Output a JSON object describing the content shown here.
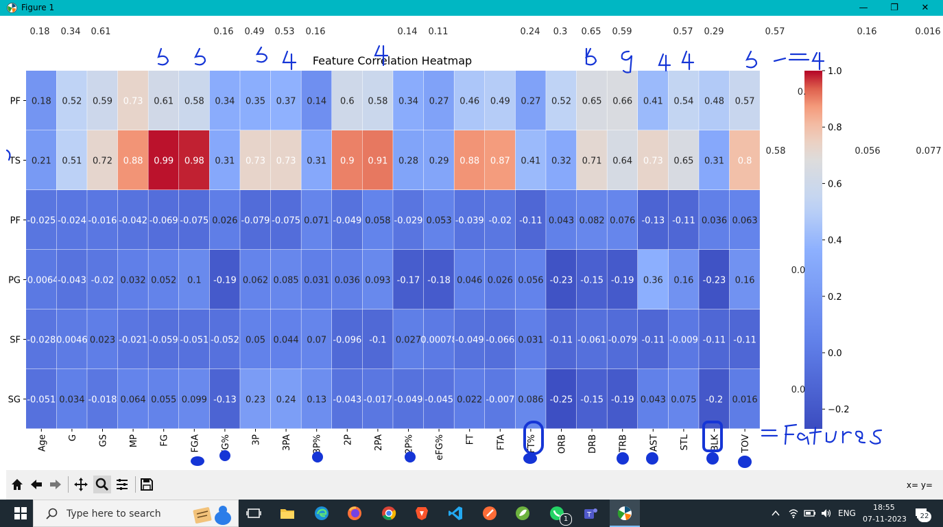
{
  "window": {
    "title": "Figure 1",
    "minimize": "—",
    "maximize": "❐",
    "close": "✕"
  },
  "figure": {
    "title": "Feature Correlation Heatmap",
    "top_values": [
      "0.18",
      "0.34",
      "0.61",
      "0.16",
      "0.49",
      "0.53",
      "0.16",
      "0.14",
      "0.11",
      "0.24",
      "0.3",
      "0.65",
      "0.59",
      "0.57",
      "0.29",
      "0.57",
      "0.16",
      "0.016"
    ],
    "right_values": [
      "0.58",
      "0.056",
      "0.077",
      "0.0",
      "0.0"
    ],
    "partial_right": [
      "0."
    ],
    "annotation": {
      "features_label": "=Features",
      "arrow": "=4"
    }
  },
  "chart_data": {
    "type": "heatmap",
    "title": "Feature Correlation Heatmap",
    "x_labels": [
      "Age",
      "G",
      "GS",
      "MP",
      "FG",
      "FGA",
      "FG%",
      "3P",
      "3PA",
      "3P%",
      "2P",
      "2PA",
      "2P%",
      "eFG%",
      "FT",
      "FTA",
      "FT%",
      "ORB",
      "DRB",
      "TRB",
      "AST",
      "STL",
      "BLK",
      "TOV"
    ],
    "y_labels": [
      "PF",
      "TS",
      "PF",
      "PG",
      "SF",
      "SG"
    ],
    "y_labels_shown": [
      "PF",
      "TS",
      "PF",
      "PG",
      "SF",
      "SG"
    ],
    "values": [
      [
        0.18,
        0.52,
        0.59,
        0.73,
        0.61,
        0.58,
        0.34,
        0.35,
        0.37,
        0.14,
        0.6,
        0.58,
        0.34,
        0.27,
        0.46,
        0.49,
        0.27,
        0.52,
        0.65,
        0.66,
        0.41,
        0.54,
        0.48,
        0.57
      ],
      [
        0.21,
        0.51,
        0.72,
        0.88,
        0.99,
        0.98,
        0.31,
        0.73,
        0.73,
        0.31,
        0.9,
        0.91,
        0.28,
        0.29,
        0.88,
        0.87,
        0.41,
        0.32,
        0.71,
        0.64,
        0.73,
        0.65,
        0.31,
        0.8
      ],
      [
        -0.025,
        -0.024,
        -0.016,
        -0.042,
        -0.069,
        -0.075,
        0.026,
        -0.079,
        -0.075,
        0.071,
        -0.049,
        0.058,
        -0.029,
        0.053,
        -0.039,
        -0.02,
        -0.11,
        0.043,
        0.082,
        0.076,
        -0.13,
        -0.11,
        0.036,
        0.063
      ],
      [
        -0.0064,
        -0.043,
        -0.02,
        0.032,
        0.052,
        0.1,
        -0.19,
        0.062,
        0.085,
        0.031,
        0.036,
        0.093,
        -0.17,
        -0.18,
        0.046,
        0.026,
        0.056,
        -0.23,
        -0.15,
        -0.19,
        0.36,
        0.16,
        -0.23,
        0.16
      ],
      [
        -0.028,
        0.0046,
        0.023,
        -0.021,
        -0.059,
        -0.051,
        -0.052,
        0.05,
        0.044,
        0.07,
        -0.096,
        -0.1,
        0.027,
        0.00078,
        -0.049,
        -0.066,
        0.031,
        -0.11,
        -0.061,
        -0.079,
        -0.11,
        -0.009,
        -0.11,
        -0.11
      ],
      [
        -0.051,
        0.034,
        -0.018,
        0.064,
        0.055,
        0.099,
        -0.13,
        0.23,
        0.24,
        0.13,
        -0.043,
        -0.017,
        -0.049,
        -0.045,
        0.022,
        -0.007,
        0.086,
        -0.25,
        -0.15,
        -0.19,
        0.043,
        0.075,
        -0.2,
        0.016
      ]
    ],
    "labels": [
      [
        "0.18",
        "0.52",
        "0.59",
        "0.73",
        "0.61",
        "0.58",
        "0.34",
        "0.35",
        "0.37",
        "0.14",
        "0.6",
        "0.58",
        "0.34",
        "0.27",
        "0.46",
        "0.49",
        "0.27",
        "0.52",
        "0.65",
        "0.66",
        "0.41",
        "0.54",
        "0.48",
        "0.57"
      ],
      [
        "0.21",
        "0.51",
        "0.72",
        "0.88",
        "0.99",
        "0.98",
        "0.31",
        "0.73",
        "0.73",
        "0.31",
        "0.9",
        "0.91",
        "0.28",
        "0.29",
        "0.88",
        "0.87",
        "0.41",
        "0.32",
        "0.71",
        "0.64",
        "0.73",
        "0.65",
        "0.31",
        "0.8"
      ],
      [
        "-0.025",
        "-0.024",
        "-0.016",
        "-0.042",
        "-0.069",
        "-0.075",
        "0.026",
        "-0.079",
        "-0.075",
        "0.071",
        "-0.049",
        "0.058",
        "-0.029",
        "0.053",
        "-0.039",
        "-0.02",
        "-0.11",
        "0.043",
        "0.082",
        "0.076",
        "-0.13",
        "-0.11",
        "0.036",
        "0.063"
      ],
      [
        "-0.0064",
        "-0.043",
        "-0.02",
        "0.032",
        "0.052",
        "0.1",
        "-0.19",
        "0.062",
        "0.085",
        "0.031",
        "0.036",
        "0.093",
        "-0.17",
        "-0.18",
        "0.046",
        "0.026",
        "0.056",
        "-0.23",
        "-0.15",
        "-0.19",
        "0.36",
        "0.16",
        "-0.23",
        "0.16"
      ],
      [
        "-0.028",
        "0.0046",
        "0.023",
        "-0.021",
        "-0.059",
        "-0.051",
        "-0.052",
        "0.05",
        "0.044",
        "0.07",
        "-0.096",
        "-0.1",
        "0.027",
        "0.00078",
        "-0.049",
        "-0.066",
        "0.031",
        "-0.11",
        "-0.061",
        "-0.079",
        "-0.11",
        "-0.009",
        "-0.11",
        "-0.11"
      ],
      [
        "-0.051",
        "0.034",
        "-0.018",
        "0.064",
        "0.055",
        "0.099",
        "-0.13",
        "0.23",
        "0.24",
        "0.13",
        "-0.043",
        "-0.017",
        "-0.049",
        "-0.045",
        "0.022",
        "-0.007",
        "0.086",
        "-0.25",
        "-0.15",
        "-0.19",
        "0.043",
        "0.075",
        "-0.2",
        "0.016"
      ]
    ],
    "colormap": "coolwarm",
    "vmin": -0.27,
    "vmax": 1.0,
    "colorbar_ticks": [
      "1.0",
      "0.8",
      "0.6",
      "0.4",
      "0.2",
      "0.0",
      "−0.2"
    ],
    "colorbar_tick_values": [
      1.0,
      0.8,
      0.6,
      0.4,
      0.2,
      0.0,
      -0.2
    ]
  },
  "toolbar": {
    "buttons": [
      "home-icon",
      "back-icon",
      "forward-icon",
      "pan-icon",
      "zoom-icon",
      "configure-icon",
      "save-icon"
    ],
    "coords": "x= y="
  },
  "taskbar": {
    "search_placeholder": "Type here to search",
    "language": "ENG",
    "time": "18:55",
    "date": "07-11-2023",
    "notification_count": "22",
    "whatsapp_badge": "1"
  }
}
